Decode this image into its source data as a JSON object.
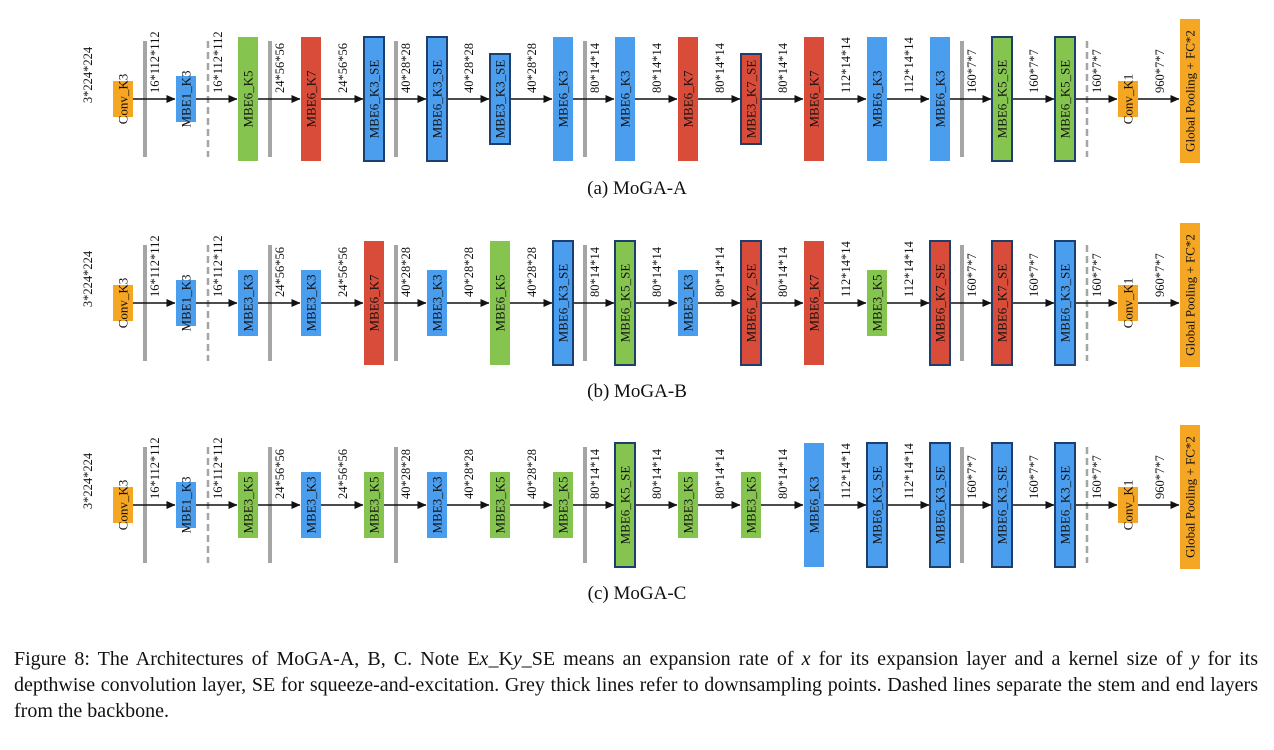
{
  "colors": {
    "stem": "#f5a623",
    "k3": "#4b9ded",
    "k5": "#84c44f",
    "k7": "#d94c3a",
    "se_border": "#1c3f6e",
    "downsample": "#a5a5a5",
    "arrow": "#111111"
  },
  "diagrams": [
    {
      "caption": "(a) MoGA-A",
      "input_label": "3*224*224",
      "blocks": [
        {
          "label": "Conv_K3",
          "kind": "stem",
          "se": false
        },
        {
          "label": "MBE1_K3",
          "kind": "k3",
          "se": false
        },
        {
          "label": "MBE6_K5",
          "kind": "k5",
          "se": false
        },
        {
          "label": "MBE6_K7",
          "kind": "k7",
          "se": false
        },
        {
          "label": "MBE6_K3_SE",
          "kind": "k3",
          "se": true
        },
        {
          "label": "MBE6_K3_SE",
          "kind": "k3",
          "se": true
        },
        {
          "label": "MBE3_K3_SE",
          "kind": "k3",
          "se": true
        },
        {
          "label": "MBE6_K3",
          "kind": "k3",
          "se": false
        },
        {
          "label": "MBE6_K3",
          "kind": "k3",
          "se": false
        },
        {
          "label": "MBE6_K7",
          "kind": "k7",
          "se": false
        },
        {
          "label": "MBE3_K7_SE",
          "kind": "k7",
          "se": true
        },
        {
          "label": "MBE6_K7",
          "kind": "k7",
          "se": false
        },
        {
          "label": "MBE6_K3",
          "kind": "k3",
          "se": false
        },
        {
          "label": "MBE6_K3",
          "kind": "k3",
          "se": false
        },
        {
          "label": "MBE6_K5_SE",
          "kind": "k5",
          "se": true
        },
        {
          "label": "MBE6_K5_SE",
          "kind": "k5",
          "se": true
        },
        {
          "label": "Conv_K1",
          "kind": "stem",
          "se": false
        },
        {
          "label": "Global Pooling + FC*2",
          "kind": "stem",
          "se": false
        }
      ],
      "connectors": [
        {
          "label": "16*112*112",
          "separator": "down"
        },
        {
          "label": "16*112*112",
          "separator": "dashed"
        },
        {
          "label": "24*56*56",
          "separator": "down"
        },
        {
          "label": "24*56*56",
          "separator": "none"
        },
        {
          "label": "40*28*28",
          "separator": "down"
        },
        {
          "label": "40*28*28",
          "separator": "none"
        },
        {
          "label": "40*28*28",
          "separator": "none"
        },
        {
          "label": "80*14*14",
          "separator": "down"
        },
        {
          "label": "80*14*14",
          "separator": "none"
        },
        {
          "label": "80*14*14",
          "separator": "none"
        },
        {
          "label": "80*14*14",
          "separator": "none"
        },
        {
          "label": "112*14*14",
          "separator": "none"
        },
        {
          "label": "112*14*14",
          "separator": "none"
        },
        {
          "label": "160*7*7",
          "separator": "down"
        },
        {
          "label": "160*7*7",
          "separator": "none"
        },
        {
          "label": "160*7*7",
          "separator": "dashed"
        },
        {
          "label": "960*7*7",
          "separator": "none"
        }
      ]
    },
    {
      "caption": "(b) MoGA-B",
      "input_label": "3*224*224",
      "blocks": [
        {
          "label": "Conv_K3",
          "kind": "stem",
          "se": false
        },
        {
          "label": "MBE1_K3",
          "kind": "k3",
          "se": false
        },
        {
          "label": "MBE3_K3",
          "kind": "k3",
          "se": false
        },
        {
          "label": "MBE3_K3",
          "kind": "k3",
          "se": false
        },
        {
          "label": "MBE6_K7",
          "kind": "k7",
          "se": false
        },
        {
          "label": "MBE3_K3",
          "kind": "k3",
          "se": false
        },
        {
          "label": "MBE6_K5",
          "kind": "k5",
          "se": false
        },
        {
          "label": "MBE6_K3_SE",
          "kind": "k3",
          "se": true
        },
        {
          "label": "MBE6_K5_SE",
          "kind": "k5",
          "se": true
        },
        {
          "label": "MBE3_K3",
          "kind": "k3",
          "se": false
        },
        {
          "label": "MBE6_K7_SE",
          "kind": "k7",
          "se": true
        },
        {
          "label": "MBE6_K7",
          "kind": "k7",
          "se": false
        },
        {
          "label": "MBE3_K5",
          "kind": "k5",
          "se": false
        },
        {
          "label": "MBE6_K7_SE",
          "kind": "k7",
          "se": true
        },
        {
          "label": "MBE6_K7_SE",
          "kind": "k7",
          "se": true
        },
        {
          "label": "MBE6_K3_SE",
          "kind": "k3",
          "se": true
        },
        {
          "label": "Conv_K1",
          "kind": "stem",
          "se": false
        },
        {
          "label": "Global Pooling + FC*2",
          "kind": "stem",
          "se": false
        }
      ],
      "connectors": [
        {
          "label": "16*112*112",
          "separator": "down"
        },
        {
          "label": "16*112*112",
          "separator": "dashed"
        },
        {
          "label": "24*56*56",
          "separator": "down"
        },
        {
          "label": "24*56*56",
          "separator": "none"
        },
        {
          "label": "40*28*28",
          "separator": "down"
        },
        {
          "label": "40*28*28",
          "separator": "none"
        },
        {
          "label": "40*28*28",
          "separator": "none"
        },
        {
          "label": "80*14*14",
          "separator": "down"
        },
        {
          "label": "80*14*14",
          "separator": "none"
        },
        {
          "label": "80*14*14",
          "separator": "none"
        },
        {
          "label": "80*14*14",
          "separator": "none"
        },
        {
          "label": "112*14*14",
          "separator": "none"
        },
        {
          "label": "112*14*14",
          "separator": "none"
        },
        {
          "label": "160*7*7",
          "separator": "down"
        },
        {
          "label": "160*7*7",
          "separator": "none"
        },
        {
          "label": "160*7*7",
          "separator": "dashed"
        },
        {
          "label": "960*7*7",
          "separator": "none"
        }
      ]
    },
    {
      "caption": "(c) MoGA-C",
      "input_label": "3*224*224",
      "blocks": [
        {
          "label": "Conv_K3",
          "kind": "stem",
          "se": false
        },
        {
          "label": "MBE1_K3",
          "kind": "k3",
          "se": false
        },
        {
          "label": "MBE3_K5",
          "kind": "k5",
          "se": false
        },
        {
          "label": "MBE3_K3",
          "kind": "k3",
          "se": false
        },
        {
          "label": "MBE3_K5",
          "kind": "k5",
          "se": false
        },
        {
          "label": "MBE3_K3",
          "kind": "k3",
          "se": false
        },
        {
          "label": "MBE3_K5",
          "kind": "k5",
          "se": false
        },
        {
          "label": "MBE3_K5",
          "kind": "k5",
          "se": false
        },
        {
          "label": "MBE6_K5_SE",
          "kind": "k5",
          "se": true
        },
        {
          "label": "MBE3_K5",
          "kind": "k5",
          "se": false
        },
        {
          "label": "MBE3_K5",
          "kind": "k5",
          "se": false
        },
        {
          "label": "MBE6_K3",
          "kind": "k3",
          "se": false
        },
        {
          "label": "MBE6_K3_SE",
          "kind": "k3",
          "se": true
        },
        {
          "label": "MBE6_K3_SE",
          "kind": "k3",
          "se": true
        },
        {
          "label": "MBE6_K3_SE",
          "kind": "k3",
          "se": true
        },
        {
          "label": "MBE6_K3_SE",
          "kind": "k3",
          "se": true
        },
        {
          "label": "Conv_K1",
          "kind": "stem",
          "se": false
        },
        {
          "label": "Global Pooling + FC*2",
          "kind": "stem",
          "se": false
        }
      ],
      "connectors": [
        {
          "label": "16*112*112",
          "separator": "down"
        },
        {
          "label": "16*112*112",
          "separator": "dashed"
        },
        {
          "label": "24*56*56",
          "separator": "down"
        },
        {
          "label": "24*56*56",
          "separator": "none"
        },
        {
          "label": "40*28*28",
          "separator": "down"
        },
        {
          "label": "40*28*28",
          "separator": "none"
        },
        {
          "label": "40*28*28",
          "separator": "none"
        },
        {
          "label": "80*14*14",
          "separator": "down"
        },
        {
          "label": "80*14*14",
          "separator": "none"
        },
        {
          "label": "80*14*14",
          "separator": "none"
        },
        {
          "label": "80*14*14",
          "separator": "none"
        },
        {
          "label": "112*14*14",
          "separator": "none"
        },
        {
          "label": "112*14*14",
          "separator": "none"
        },
        {
          "label": "160*7*7",
          "separator": "down"
        },
        {
          "label": "160*7*7",
          "separator": "none"
        },
        {
          "label": "160*7*7",
          "separator": "dashed"
        },
        {
          "label": "960*7*7",
          "separator": "none"
        }
      ]
    }
  ],
  "figure_caption": {
    "prefix": "Figure 8: The Architectures of MoGA-A, B, C. Note E",
    "var_x": "x",
    "mid1": "_K",
    "var_y": "y",
    "mid2": "_SE means an expansion rate of ",
    "var_x2": "x",
    "mid3": " for its expansion layer and a kernel size of ",
    "var_y2": "y",
    "suffix": " for its depthwise convolution layer, SE for squeeze-and-excitation. Grey thick lines refer to downsampling points. Dashed lines separate the stem and end layers from the backbone."
  }
}
